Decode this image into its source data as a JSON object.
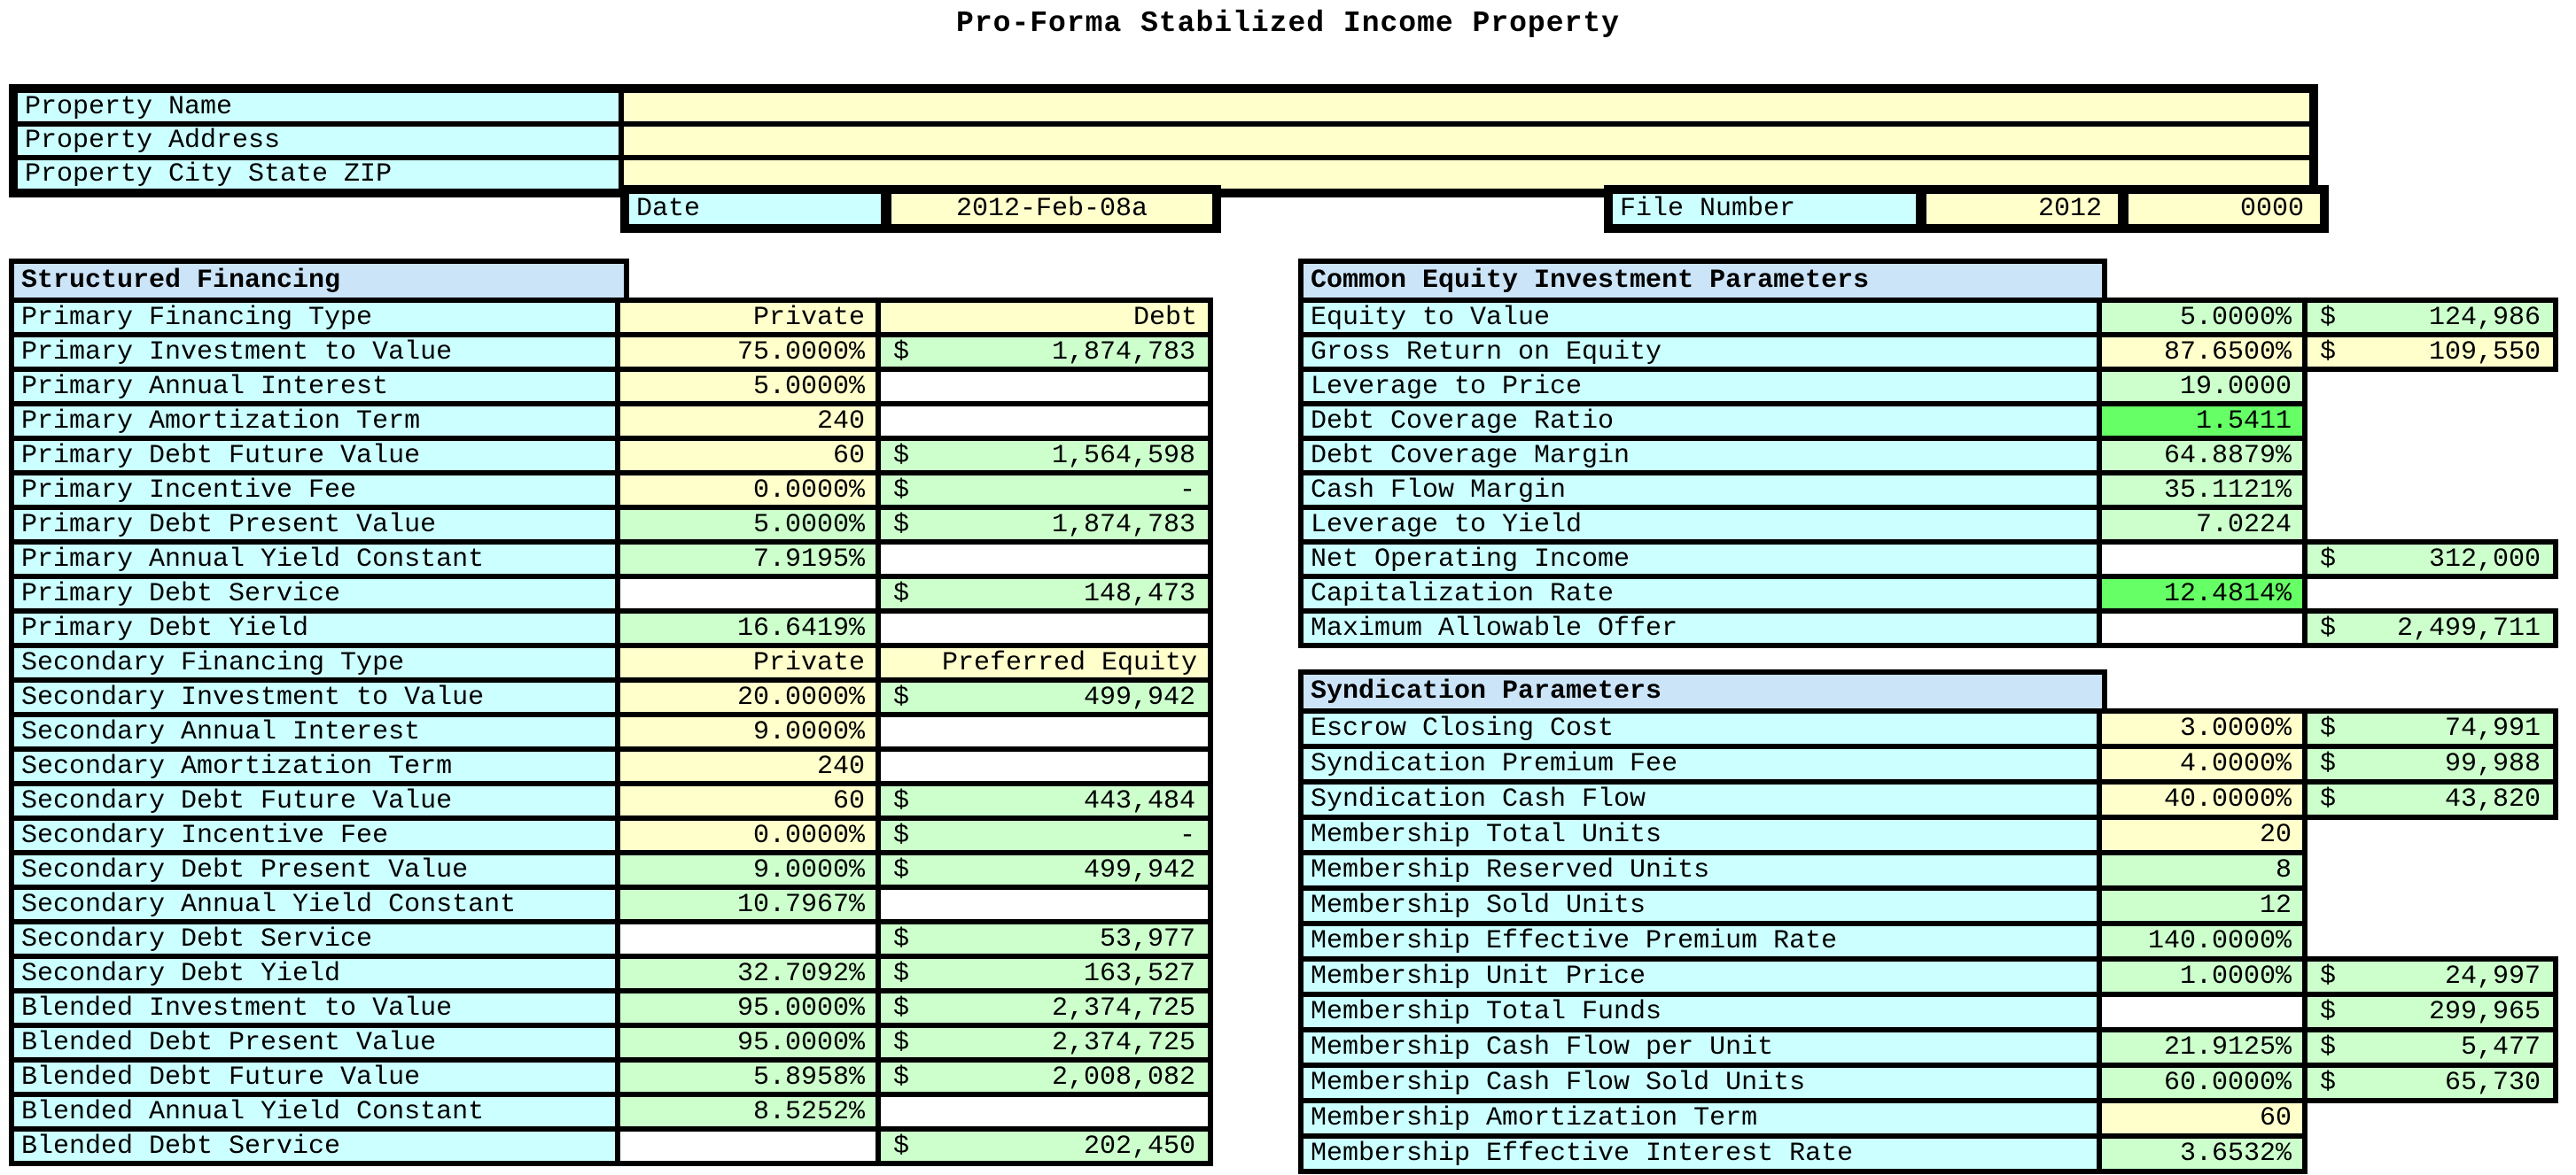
{
  "title": "Pro-Forma Stabilized Income Property",
  "currency_symbol": "$",
  "colors": {
    "label_cyan": "#CCFFFF",
    "input_yellow": "#FFFFCC",
    "calculated_green": "#CCFFCC",
    "highlight_green": "#66FF66",
    "section_header_blue": "#CCE4F7",
    "grid_black": "#000000"
  },
  "property_info": {
    "rows": [
      {
        "label": "Property Name",
        "value": ""
      },
      {
        "label": "Property Address",
        "value": ""
      },
      {
        "label": "Property City State ZIP",
        "value": ""
      }
    ]
  },
  "date_field": {
    "label": "Date",
    "value": "2012-Feb-08a"
  },
  "file_field": {
    "label": "File Number",
    "year": "2012",
    "number": "0000"
  },
  "tables": [
    {
      "header": "Structured Financing",
      "rows": [
        {
          "label": "Primary Financing Type",
          "v1": "Private",
          "v1c": "yellow",
          "v2": "Debt",
          "v2t": "text",
          "v2c": "yellow"
        },
        {
          "label": "Primary Investment to Value",
          "v1": "75.0000%",
          "v1c": "yellow",
          "v2": "1,874,783",
          "v2t": "dollar",
          "v2c": "green"
        },
        {
          "label": "Primary Annual Interest",
          "v1": "5.0000%",
          "v1c": "yellow",
          "v2": "",
          "v2t": "blank",
          "v2c": "white"
        },
        {
          "label": "Primary Amortization Term",
          "v1": "240",
          "v1c": "yellow",
          "v2": "",
          "v2t": "blank",
          "v2c": "white"
        },
        {
          "label": "Primary Debt Future Value",
          "v1": "60",
          "v1c": "yellow",
          "v2": "1,564,598",
          "v2t": "dollar",
          "v2c": "green"
        },
        {
          "label": "Primary Incentive Fee",
          "v1": "0.0000%",
          "v1c": "yellow",
          "v2": "-",
          "v2t": "dollar",
          "v2c": "green"
        },
        {
          "label": "Primary Debt Present Value",
          "v1": "5.0000%",
          "v1c": "green",
          "v2": "1,874,783",
          "v2t": "dollar",
          "v2c": "green"
        },
        {
          "label": "Primary Annual Yield Constant",
          "v1": "7.9195%",
          "v1c": "green",
          "v2": "",
          "v2t": "blank",
          "v2c": "white"
        },
        {
          "label": "Primary Debt Service",
          "v1": "",
          "v1c": "white",
          "v2": "148,473",
          "v2t": "dollar",
          "v2c": "green"
        },
        {
          "label": "Primary Debt Yield",
          "v1": "16.6419%",
          "v1c": "green",
          "v2": "",
          "v2t": "blank",
          "v2c": "white"
        },
        {
          "label": "Secondary Financing Type",
          "v1": "Private",
          "v1c": "yellow",
          "v2": "Preferred Equity",
          "v2t": "text",
          "v2c": "yellow"
        },
        {
          "label": "Secondary Investment to Value",
          "v1": "20.0000%",
          "v1c": "yellow",
          "v2": "499,942",
          "v2t": "dollar",
          "v2c": "green"
        },
        {
          "label": "Secondary Annual Interest",
          "v1": "9.0000%",
          "v1c": "yellow",
          "v2": "",
          "v2t": "blank",
          "v2c": "white"
        },
        {
          "label": "Secondary Amortization Term",
          "v1": "240",
          "v1c": "yellow",
          "v2": "",
          "v2t": "blank",
          "v2c": "white"
        },
        {
          "label": "Secondary Debt Future Value",
          "v1": "60",
          "v1c": "yellow",
          "v2": "443,484",
          "v2t": "dollar",
          "v2c": "green"
        },
        {
          "label": "Secondary Incentive Fee",
          "v1": "0.0000%",
          "v1c": "yellow",
          "v2": "-",
          "v2t": "dollar",
          "v2c": "green"
        },
        {
          "label": "Secondary Debt Present Value",
          "v1": "9.0000%",
          "v1c": "green",
          "v2": "499,942",
          "v2t": "dollar",
          "v2c": "green"
        },
        {
          "label": "Secondary Annual Yield Constant",
          "v1": "10.7967%",
          "v1c": "green",
          "v2": "",
          "v2t": "blank",
          "v2c": "white"
        },
        {
          "label": "Secondary Debt Service",
          "v1": "",
          "v1c": "white",
          "v2": "53,977",
          "v2t": "dollar",
          "v2c": "green"
        },
        {
          "label": "Secondary Debt Yield",
          "v1": "32.7092%",
          "v1c": "green",
          "v2": "163,527",
          "v2t": "dollar",
          "v2c": "green"
        },
        {
          "label": "Blended Investment to Value",
          "v1": "95.0000%",
          "v1c": "green",
          "v2": "2,374,725",
          "v2t": "dollar",
          "v2c": "green"
        },
        {
          "label": "Blended Debt Present Value",
          "v1": "95.0000%",
          "v1c": "green",
          "v2": "2,374,725",
          "v2t": "dollar",
          "v2c": "green"
        },
        {
          "label": "Blended Debt Future Value",
          "v1": "5.8958%",
          "v1c": "green",
          "v2": "2,008,082",
          "v2t": "dollar",
          "v2c": "green"
        },
        {
          "label": "Blended Annual Yield Constant",
          "v1": "8.5252%",
          "v1c": "green",
          "v2": "",
          "v2t": "blank",
          "v2c": "white"
        },
        {
          "label": "Blended Debt Service",
          "v1": "",
          "v1c": "white",
          "v2": "202,450",
          "v2t": "dollar",
          "v2c": "green"
        }
      ]
    },
    {
      "header": "Common Equity Investment Parameters",
      "rows": [
        {
          "label": "Equity to Value",
          "v1": "5.0000%",
          "v1c": "green",
          "v2": "124,986",
          "v2t": "dollar",
          "v2c": "green"
        },
        {
          "label": "Gross Return on Equity",
          "v1": "87.6500%",
          "v1c": "yellow",
          "v2": "109,550",
          "v2t": "dollar",
          "v2c": "yellow"
        },
        {
          "label": "Leverage to Price",
          "v1": "19.0000",
          "v1c": "green",
          "v2": "",
          "v2t": "none",
          "v2c": "white"
        },
        {
          "label": "Debt Coverage Ratio",
          "v1": "1.5411",
          "v1c": "bright",
          "v2": "",
          "v2t": "none",
          "v2c": "white"
        },
        {
          "label": "Debt Coverage Margin",
          "v1": "64.8879%",
          "v1c": "green",
          "v2": "",
          "v2t": "none",
          "v2c": "white"
        },
        {
          "label": "Cash Flow Margin",
          "v1": "35.1121%",
          "v1c": "green",
          "v2": "",
          "v2t": "none",
          "v2c": "white"
        },
        {
          "label": "Leverage to Yield",
          "v1": "7.0224",
          "v1c": "green",
          "v2": "",
          "v2t": "none",
          "v2c": "white"
        },
        {
          "label": "Net Operating Income",
          "v1": "",
          "v1c": "white",
          "v2": "312,000",
          "v2t": "dollar",
          "v2c": "green"
        },
        {
          "label": "Capitalization Rate",
          "v1": "12.4814%",
          "v1c": "bright",
          "v2": "",
          "v2t": "none",
          "v2c": "white"
        },
        {
          "label": "Maximum Allowable Offer",
          "v1": "",
          "v1c": "white",
          "v2": "2,499,711",
          "v2t": "dollar",
          "v2c": "green"
        }
      ]
    },
    {
      "header": "Syndication Parameters",
      "rows": [
        {
          "label": "Escrow Closing Cost",
          "v1": "3.0000%",
          "v1c": "yellow",
          "v2": "74,991",
          "v2t": "dollar",
          "v2c": "green"
        },
        {
          "label": "Syndication Premium Fee",
          "v1": "4.0000%",
          "v1c": "yellow",
          "v2": "99,988",
          "v2t": "dollar",
          "v2c": "green"
        },
        {
          "label": "Syndication Cash Flow",
          "v1": "40.0000%",
          "v1c": "yellow",
          "v2": "43,820",
          "v2t": "dollar",
          "v2c": "green"
        },
        {
          "label": "Membership Total Units",
          "v1": "20",
          "v1c": "yellow",
          "v2": "",
          "v2t": "none",
          "v2c": "white"
        },
        {
          "label": "Membership Reserved Units",
          "v1": "8",
          "v1c": "green",
          "v2": "",
          "v2t": "none",
          "v2c": "white"
        },
        {
          "label": "Membership Sold Units",
          "v1": "12",
          "v1c": "green",
          "v2": "",
          "v2t": "none",
          "v2c": "white"
        },
        {
          "label": "Membership Effective Premium Rate",
          "v1": "140.0000%",
          "v1c": "green",
          "v2": "",
          "v2t": "none",
          "v2c": "white"
        },
        {
          "label": "Membership Unit Price",
          "v1": "1.0000%",
          "v1c": "green",
          "v2": "24,997",
          "v2t": "dollar",
          "v2c": "green"
        },
        {
          "label": "Membership Total Funds",
          "v1": "",
          "v1c": "white",
          "v2": "299,965",
          "v2t": "dollar",
          "v2c": "green"
        },
        {
          "label": "Membership Cash Flow per Unit",
          "v1": "21.9125%",
          "v1c": "green",
          "v2": "5,477",
          "v2t": "dollar",
          "v2c": "green"
        },
        {
          "label": "Membership Cash Flow Sold Units",
          "v1": "60.0000%",
          "v1c": "green",
          "v2": "65,730",
          "v2t": "dollar",
          "v2c": "green"
        },
        {
          "label": "Membership Amortization Term",
          "v1": "60",
          "v1c": "yellow",
          "v2": "",
          "v2t": "none",
          "v2c": "white"
        },
        {
          "label": "Membership Effective Interest Rate",
          "v1": "3.6532%",
          "v1c": "green",
          "v2": "",
          "v2t": "none",
          "v2c": "white"
        }
      ]
    }
  ]
}
